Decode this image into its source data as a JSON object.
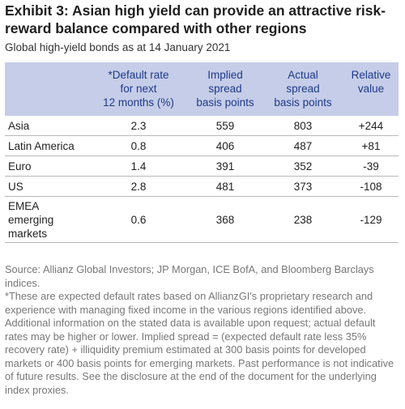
{
  "title": "Exhibit 3: Asian high yield can provide an attractive risk-reward balance compared with other regions",
  "subtitle": "Global high-yield bonds as at 14 January 2021",
  "table": {
    "headers": {
      "region": "",
      "default_rate": "*Default rate\nfor next\n12 months (%)",
      "implied_spread": "Implied\nspread\nbasis points",
      "actual_spread": "Actual\nspread\nbasis points",
      "relative_value": "Relative\nvalue"
    },
    "rows": [
      {
        "region": "Asia",
        "default_rate": "2.3",
        "implied_spread": "559",
        "actual_spread": "803",
        "relative_value": "+244"
      },
      {
        "region": "Latin America",
        "default_rate": "0.8",
        "implied_spread": "406",
        "actual_spread": "487",
        "relative_value": "+81"
      },
      {
        "region": "Euro",
        "default_rate": "1.4",
        "implied_spread": "391",
        "actual_spread": "352",
        "relative_value": "-39"
      },
      {
        "region": "US",
        "default_rate": "2.8",
        "implied_spread": "481",
        "actual_spread": "373",
        "relative_value": "-108"
      },
      {
        "region": "EMEA\nemerging\nmarkets",
        "default_rate": "0.6",
        "implied_spread": "368",
        "actual_spread": "238",
        "relative_value": "-129"
      }
    ]
  },
  "source": "Source: Allianz Global Investors; JP Morgan, ICE BofA, and Bloomberg Barclays indices.",
  "footnote": "*These are expected default rates based on AllianzGI's proprietary research and experience with managing fixed income in the various regions identified above. Additional information on the stated data is available upon request; actual default rates may be higher or lower. Implied spread = (expected default rate less 35% recovery rate) + illiquidity premium estimated at 300 basis points for developed markets or 400 basis points for emerging markets. Past performance is not indicative of future results. See the disclosure at the end of the document for the underlying index proxies.",
  "colors": {
    "header_background": "#c6cde8",
    "header_text": "#1d3a8a",
    "notes_text": "#777777"
  }
}
